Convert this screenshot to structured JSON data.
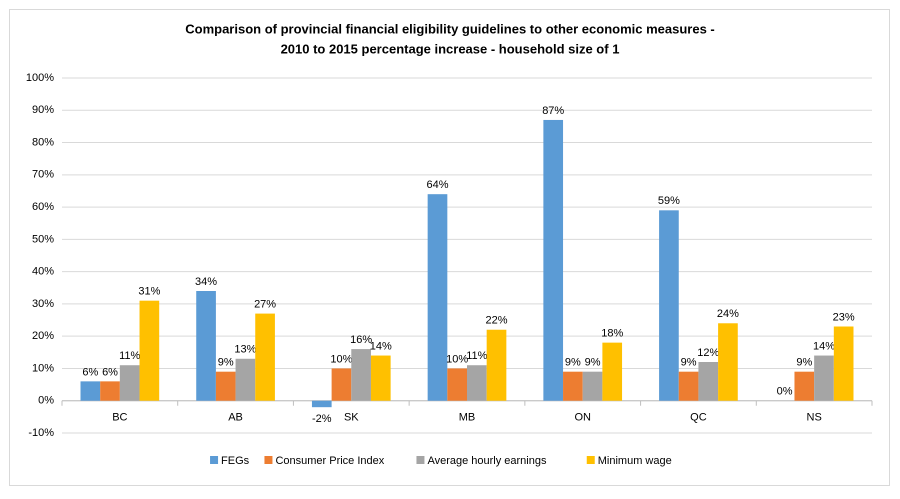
{
  "chart_data": {
    "type": "bar",
    "title": [
      "Comparison of provincial financial eligibility guidelines to other economic measures -",
      "2010 to 2015 percentage increase - household size of 1"
    ],
    "categories": [
      "BC",
      "AB",
      "SK",
      "MB",
      "ON",
      "QC",
      "NS"
    ],
    "series": [
      {
        "name": "FEGs",
        "color": "#5b9bd5",
        "values": [
          6,
          34,
          -2,
          64,
          87,
          59,
          0
        ],
        "value_labels": [
          "6%",
          "34%",
          "-2%",
          "64%",
          "87%",
          "59%",
          "0%"
        ]
      },
      {
        "name": "Consumer Price Index",
        "color": "#ed7d31",
        "values": [
          6,
          9,
          10,
          10,
          9,
          9,
          9
        ],
        "value_labels": [
          "6%",
          "9%",
          "10%",
          "10%",
          "9%",
          "9%",
          "9%"
        ]
      },
      {
        "name": "Average hourly earnings",
        "color": "#a5a5a5",
        "values": [
          11,
          13,
          16,
          11,
          9,
          12,
          14
        ],
        "value_labels": [
          "11%",
          "13%",
          "16%",
          "11%",
          "9%",
          "12%",
          "14%"
        ]
      },
      {
        "name": "Minimum wage",
        "color": "#ffc000",
        "values": [
          31,
          27,
          14,
          22,
          18,
          24,
          23
        ],
        "value_labels": [
          "31%",
          "27%",
          "14%",
          "22%",
          "18%",
          "24%",
          "23%"
        ]
      }
    ],
    "ylim": [
      -10,
      100
    ],
    "yticks": [
      {
        "value": -10,
        "label": "-10%"
      },
      {
        "value": 0,
        "label": "0%"
      },
      {
        "value": 10,
        "label": "10%"
      },
      {
        "value": 20,
        "label": "20%"
      },
      {
        "value": 30,
        "label": "30%"
      },
      {
        "value": 40,
        "label": "40%"
      },
      {
        "value": 50,
        "label": "50%"
      },
      {
        "value": 60,
        "label": "60%"
      },
      {
        "value": 70,
        "label": "70%"
      },
      {
        "value": 80,
        "label": "80%"
      },
      {
        "value": 90,
        "label": "90%"
      },
      {
        "value": 100,
        "label": "100%"
      }
    ],
    "grid": true,
    "legend": "bottom"
  }
}
